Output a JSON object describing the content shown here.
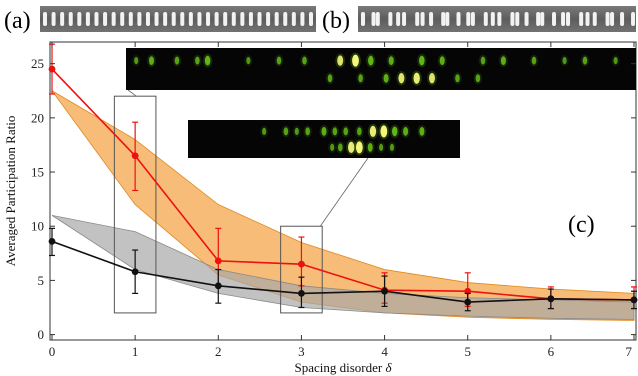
{
  "panels": {
    "a": {
      "label": "(a)",
      "waveguide_count": 32
    },
    "b": {
      "label": "(b)",
      "waveguide_count": 32
    },
    "c": {
      "label": "(c)"
    }
  },
  "colors": {
    "red_series": "#ee1111",
    "black_series": "#111111",
    "orange_band": "#f4a64a",
    "orange_band_edge": "#e08a1e",
    "gray_band": "#a8a8a8",
    "inset_bg": "#050505",
    "spot_green": "#6fcf1a",
    "spot_yellow": "#f6f67a"
  },
  "chart_data": {
    "type": "line",
    "title": "",
    "xlabel": "Spacing disorder",
    "xlabel_symbol": "δ",
    "ylabel": "Averaged Participation Ratio",
    "xlim": [
      0,
      7
    ],
    "ylim": [
      -0.5,
      27
    ],
    "xticks": [
      0,
      1,
      2,
      3,
      4,
      5,
      6,
      7
    ],
    "yticks": [
      0,
      5,
      10,
      15,
      20,
      25
    ],
    "grid": false,
    "legend": "none",
    "series": [
      {
        "color_key": "red_series",
        "x": [
          0,
          1,
          2,
          3,
          4,
          5,
          6,
          7
        ],
        "y": [
          24.5,
          16.5,
          6.8,
          6.5,
          4.1,
          4.0,
          3.3,
          3.2
        ],
        "err_low": [
          22.2,
          13.3,
          4.5,
          4.5,
          2.9,
          2.6,
          2.4,
          2.4
        ],
        "err_high": [
          26.8,
          19.6,
          9.8,
          9.0,
          5.7,
          5.7,
          4.4,
          4.4
        ]
      },
      {
        "color_key": "black_series",
        "x": [
          0,
          1,
          2,
          3,
          4,
          5,
          6,
          7
        ],
        "y": [
          8.6,
          5.8,
          4.5,
          3.8,
          4.0,
          3.0,
          3.3,
          3.2
        ],
        "err_low": [
          7.3,
          3.8,
          2.9,
          2.5,
          2.6,
          2.2,
          2.4,
          2.4
        ],
        "err_high": [
          9.8,
          7.8,
          6.0,
          5.3,
          5.4,
          3.8,
          4.2,
          4.0
        ]
      }
    ],
    "bands": [
      {
        "color_key": "orange_band",
        "x": [
          0,
          1,
          2,
          3,
          4,
          5,
          6,
          7
        ],
        "upper": [
          22.5,
          18.0,
          12.0,
          8.5,
          6.0,
          4.8,
          4.2,
          3.8
        ],
        "lower": [
          22.5,
          12.0,
          5.5,
          3.0,
          2.0,
          1.6,
          1.4,
          1.3
        ]
      },
      {
        "color_key": "gray_band",
        "x": [
          0,
          1,
          2,
          3,
          4,
          5,
          6,
          7
        ],
        "upper": [
          11.0,
          9.5,
          6.0,
          4.5,
          3.8,
          3.4,
          3.2,
          3.0
        ],
        "lower": [
          11.0,
          6.0,
          3.8,
          2.5,
          2.0,
          1.7,
          1.5,
          1.4
        ]
      }
    ],
    "highlight_boxes": [
      {
        "x": [
          0.75,
          1.25
        ],
        "y": [
          2,
          22
        ]
      },
      {
        "x": [
          2.75,
          3.25
        ],
        "y": [
          2,
          10
        ]
      }
    ],
    "insets": [
      {
        "linked_box": 0,
        "rows": [
          [
            {
              "x": 0.02,
              "b": 0.4
            },
            {
              "x": 0.05,
              "b": 0.6
            },
            {
              "x": 0.1,
              "b": 0.5
            },
            {
              "x": 0.14,
              "b": 0.5
            },
            {
              "x": 0.16,
              "b": 0.7
            },
            {
              "x": 0.24,
              "b": 0.4
            },
            {
              "x": 0.3,
              "b": 0.5
            },
            {
              "x": 0.35,
              "b": 0.5
            },
            {
              "x": 0.42,
              "b": 0.8
            },
            {
              "x": 0.45,
              "b": 1.0
            },
            {
              "x": 0.48,
              "b": 0.7
            },
            {
              "x": 0.52,
              "b": 0.6
            },
            {
              "x": 0.58,
              "b": 0.7
            },
            {
              "x": 0.62,
              "b": 0.6
            },
            {
              "x": 0.7,
              "b": 0.5
            },
            {
              "x": 0.74,
              "b": 0.6
            },
            {
              "x": 0.8,
              "b": 0.5
            },
            {
              "x": 0.86,
              "b": 0.4
            },
            {
              "x": 0.9,
              "b": 0.5
            },
            {
              "x": 0.96,
              "b": 0.4
            }
          ],
          [
            {
              "x": 0.4,
              "b": 0.5
            },
            {
              "x": 0.46,
              "b": 0.5
            },
            {
              "x": 0.51,
              "b": 0.6
            },
            {
              "x": 0.54,
              "b": 0.8
            },
            {
              "x": 0.57,
              "b": 0.9
            },
            {
              "x": 0.6,
              "b": 0.8
            },
            {
              "x": 0.65,
              "b": 0.5
            },
            {
              "x": 0.69,
              "b": 0.5
            }
          ]
        ]
      },
      {
        "linked_box": 1,
        "rows": [
          [
            {
              "x": 0.28,
              "b": 0.4
            },
            {
              "x": 0.36,
              "b": 0.5
            },
            {
              "x": 0.4,
              "b": 0.4
            },
            {
              "x": 0.44,
              "b": 0.5
            },
            {
              "x": 0.5,
              "b": 0.6
            },
            {
              "x": 0.54,
              "b": 0.5
            },
            {
              "x": 0.58,
              "b": 0.5
            },
            {
              "x": 0.63,
              "b": 0.5
            },
            {
              "x": 0.68,
              "b": 0.9
            },
            {
              "x": 0.72,
              "b": 1.0
            },
            {
              "x": 0.76,
              "b": 0.7
            },
            {
              "x": 0.8,
              "b": 0.6
            },
            {
              "x": 0.86,
              "b": 0.6
            }
          ],
          [
            {
              "x": 0.53,
              "b": 0.4
            },
            {
              "x": 0.56,
              "b": 0.5
            },
            {
              "x": 0.6,
              "b": 0.9
            },
            {
              "x": 0.63,
              "b": 1.0
            },
            {
              "x": 0.67,
              "b": 0.6
            },
            {
              "x": 0.71,
              "b": 0.4
            },
            {
              "x": 0.75,
              "b": 0.4
            }
          ]
        ]
      }
    ]
  }
}
